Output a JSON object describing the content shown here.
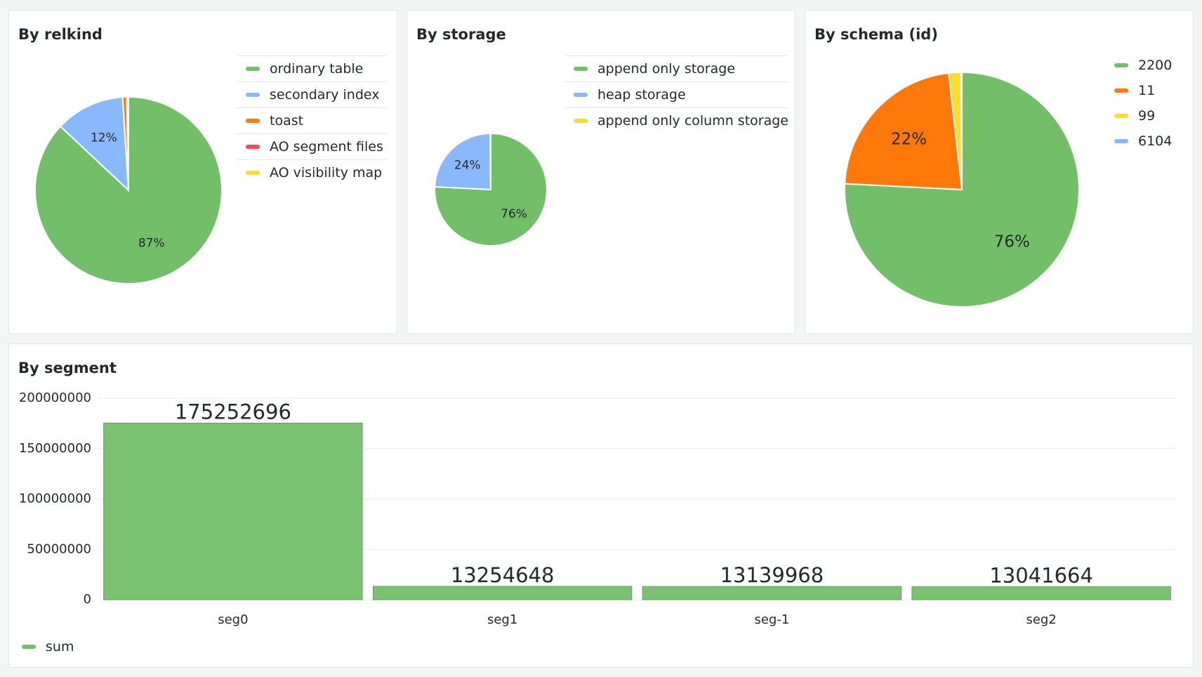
{
  "panels": {
    "relkind": {
      "title": "By relkind",
      "legend": [
        {
          "label": "ordinary table",
          "color": "#73bf69"
        },
        {
          "label": "secondary index",
          "color": "#8ab8ff"
        },
        {
          "label": "toast",
          "color": "#ff780a"
        },
        {
          "label": "AO segment files",
          "color": "#f2495c"
        },
        {
          "label": "AO visibility map",
          "color": "#fade2a"
        }
      ]
    },
    "storage": {
      "title": "By storage",
      "legend": [
        {
          "label": "append only storage",
          "color": "#73bf69"
        },
        {
          "label": "heap storage",
          "color": "#8ab8ff"
        },
        {
          "label": "append only column storage",
          "color": "#fade2a"
        }
      ]
    },
    "schema": {
      "title": "By schema (id)",
      "legend": [
        {
          "label": "2200",
          "color": "#73bf69"
        },
        {
          "label": "11",
          "color": "#ff780a"
        },
        {
          "label": "99",
          "color": "#fade2a"
        },
        {
          "label": "6104",
          "color": "#8ab8ff"
        }
      ]
    },
    "segment": {
      "title": "By segment",
      "legend": [
        {
          "label": "sum",
          "color": "#73bf69"
        }
      ]
    }
  },
  "chart_data": [
    {
      "type": "pie",
      "title": "By relkind",
      "labels": [
        "ordinary table",
        "secondary index",
        "toast",
        "AO segment files",
        "AO visibility map"
      ],
      "values": [
        87.0,
        12.0,
        0.7,
        0.15,
        0.15
      ],
      "slice_labels": [
        "87%",
        "12%",
        "",
        "",
        ""
      ],
      "colors": [
        "#73bf69",
        "#8ab8ff",
        "#ff780a",
        "#f2495c",
        "#fade2a"
      ],
      "legend": "right"
    },
    {
      "type": "pie",
      "title": "By storage",
      "labels": [
        "append only storage",
        "heap storage",
        "append only column storage"
      ],
      "values": [
        75.8,
        24.0,
        0.2
      ],
      "slice_labels": [
        "76%",
        "24%",
        ""
      ],
      "colors": [
        "#73bf69",
        "#8ab8ff",
        "#fade2a"
      ],
      "legend": "right"
    },
    {
      "type": "pie",
      "title": "By schema (id)",
      "labels": [
        "2200",
        "11",
        "99",
        "6104"
      ],
      "values": [
        75.8,
        22.4,
        1.7,
        0.1
      ],
      "slice_labels": [
        "76%",
        "22%",
        "",
        ""
      ],
      "colors": [
        "#73bf69",
        "#ff780a",
        "#fade2a",
        "#8ab8ff"
      ],
      "legend": "right"
    },
    {
      "type": "bar",
      "title": "By segment",
      "categories": [
        "seg0",
        "seg1",
        "seg-1",
        "seg2"
      ],
      "series": [
        {
          "name": "sum",
          "values": [
            175252696,
            13254648,
            13139968,
            13041664
          ],
          "color": "#73bf69"
        }
      ],
      "value_labels": [
        "175252696",
        "13254648",
        "13139968",
        "13041664"
      ],
      "ylim": [
        0,
        200000000
      ],
      "yticks": [
        0,
        50000000,
        100000000,
        150000000,
        200000000
      ],
      "ytick_labels": [
        "0",
        "50000000",
        "100000000",
        "150000000",
        "200000000"
      ],
      "grid": true,
      "legend": "bottom-left"
    }
  ]
}
